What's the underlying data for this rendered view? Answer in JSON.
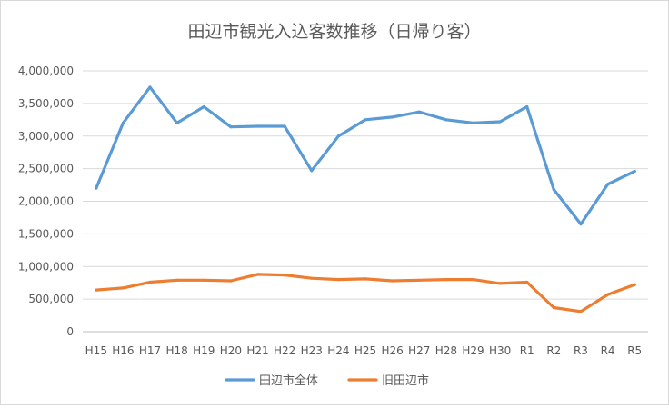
{
  "chart_data": {
    "type": "line",
    "title": "田辺市観光入込客数推移（日帰り客）",
    "xlabel": "",
    "ylabel": "",
    "categories": [
      "H15",
      "H16",
      "H17",
      "H18",
      "H19",
      "H20",
      "H21",
      "H22",
      "H23",
      "H24",
      "H25",
      "H26",
      "H27",
      "H28",
      "H29",
      "H30",
      "R1",
      "R2",
      "R3",
      "R4",
      "R5"
    ],
    "ylim": [
      0,
      4000000
    ],
    "yticks": [
      "0",
      "500,000",
      "1,000,000",
      "1,500,000",
      "2,000,000",
      "2,500,000",
      "3,000,000",
      "3,500,000",
      "4,000,000"
    ],
    "grid": true,
    "legend_position": "bottom",
    "series": [
      {
        "name": "田辺市全体",
        "color": "#5b9bd5",
        "values": [
          2200000,
          3200000,
          3750000,
          3200000,
          3450000,
          3140000,
          3150000,
          3150000,
          2470000,
          3000000,
          3250000,
          3290000,
          3370000,
          3250000,
          3200000,
          3220000,
          3450000,
          2180000,
          1650000,
          2260000,
          2460000
        ]
      },
      {
        "name": "旧田辺市",
        "color": "#ed7d31",
        "values": [
          640000,
          670000,
          760000,
          790000,
          790000,
          780000,
          880000,
          870000,
          820000,
          800000,
          810000,
          780000,
          790000,
          800000,
          800000,
          740000,
          760000,
          370000,
          310000,
          570000,
          720000
        ]
      }
    ]
  }
}
